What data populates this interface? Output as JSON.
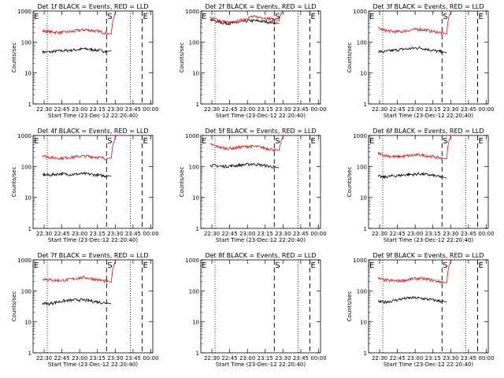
{
  "chart_data": [
    {
      "type": "line",
      "title": "Det 1f BLACK = Events, RED = LLD",
      "xlabel": "Start Time (23-Dec-12 22:20:40)",
      "ylabel": "Counts/sec",
      "yscale": "log",
      "ylim": [
        1,
        1000
      ],
      "xticks": [
        "22:30",
        "22:45",
        "23:00",
        "23:15",
        "23:30",
        "23:45",
        "00:00"
      ],
      "yticks": [
        "1",
        "10",
        "100",
        "1000"
      ],
      "markers": [
        "S",
        "E"
      ],
      "has_data": true,
      "series": [
        {
          "color": "#000000",
          "x": [
            0,
            5,
            10,
            15,
            20,
            25,
            30,
            35,
            40,
            45,
            50,
            55,
            58
          ],
          "y": [
            48,
            47,
            50,
            52,
            53,
            55,
            57,
            60,
            58,
            55,
            52,
            50,
            52
          ]
        },
        {
          "color": "#ff0000",
          "x": [
            0,
            5,
            10,
            15,
            20,
            25,
            30,
            35,
            40,
            45,
            50,
            55,
            58,
            60,
            62
          ],
          "y": [
            230,
            215,
            210,
            205,
            210,
            220,
            235,
            250,
            240,
            225,
            210,
            190,
            180,
            600,
            1000
          ]
        }
      ]
    },
    {
      "type": "line",
      "title": "Det 2f BLACK = Events, RED = LLD",
      "xlabel": "Start Time (23-Dec-12 22:20:40)",
      "ylabel": "Counts/sec",
      "yscale": "log",
      "ylim": [
        1,
        1000
      ],
      "xticks": [
        "22:30",
        "22:45",
        "23:00",
        "23:15",
        "23:30",
        "23:45",
        "00:00"
      ],
      "yticks": [
        "1",
        "10",
        "100",
        "1000"
      ],
      "markers": [
        "S",
        "E"
      ],
      "has_data": true,
      "series": [
        {
          "color": "#000000",
          "x": [
            0,
            5,
            10,
            15,
            20,
            25,
            30,
            35,
            40,
            45,
            50,
            55,
            58
          ],
          "y": [
            520,
            470,
            420,
            400,
            410,
            440,
            470,
            490,
            480,
            460,
            440,
            420,
            400
          ]
        },
        {
          "color": "#ff0000",
          "x": [
            0,
            5,
            10,
            15,
            20,
            25,
            30,
            35,
            40,
            45,
            50,
            55,
            58,
            60,
            62
          ],
          "y": [
            600,
            540,
            470,
            420,
            430,
            500,
            580,
            650,
            640,
            610,
            570,
            520,
            480,
            900,
            1000
          ]
        }
      ]
    },
    {
      "type": "line",
      "title": "Det 3f BLACK = Events, RED = LLD",
      "xlabel": "Start Time (23-Dec-12 22:20:40)",
      "ylabel": "Counts/sec",
      "yscale": "log",
      "ylim": [
        1,
        1000
      ],
      "xticks": [
        "22:30",
        "22:45",
        "23:00",
        "23:15",
        "23:30",
        "23:45",
        "00:00"
      ],
      "yticks": [
        "1",
        "10",
        "100",
        "1000"
      ],
      "markers": [
        "S",
        "E"
      ],
      "has_data": true,
      "series": [
        {
          "color": "#000000",
          "x": [
            0,
            5,
            10,
            15,
            20,
            25,
            30,
            35,
            40,
            45,
            50,
            55,
            58
          ],
          "y": [
            50,
            48,
            52,
            55,
            58,
            60,
            63,
            65,
            60,
            55,
            50,
            48,
            45
          ]
        },
        {
          "color": "#ff0000",
          "x": [
            0,
            5,
            10,
            15,
            20,
            25,
            30,
            35,
            40,
            45,
            50,
            55,
            58,
            60,
            62
          ],
          "y": [
            280,
            240,
            225,
            215,
            220,
            235,
            250,
            260,
            245,
            225,
            210,
            190,
            180,
            700,
            1000
          ]
        }
      ]
    },
    {
      "type": "line",
      "title": "Det 4f BLACK = Events, RED = LLD",
      "xlabel": "Start Time (23-Dec-12 22:20:40)",
      "ylabel": "Counts/sec",
      "yscale": "log",
      "ylim": [
        1,
        1000
      ],
      "xticks": [
        "22:30",
        "22:45",
        "23:00",
        "23:15",
        "23:30",
        "23:45",
        "00:00"
      ],
      "yticks": [
        "1",
        "10",
        "100",
        "1000"
      ],
      "markers": [
        "S",
        "E"
      ],
      "has_data": true,
      "series": [
        {
          "color": "#000000",
          "x": [
            0,
            5,
            10,
            15,
            20,
            25,
            30,
            35,
            40,
            45,
            50,
            55,
            58
          ],
          "y": [
            55,
            52,
            55,
            58,
            56,
            55,
            57,
            58,
            56,
            53,
            50,
            50,
            48
          ]
        },
        {
          "color": "#ff0000",
          "x": [
            0,
            5,
            10,
            15,
            20,
            25,
            30,
            35,
            40,
            45,
            50,
            55,
            58,
            60,
            62
          ],
          "y": [
            230,
            200,
            190,
            185,
            190,
            200,
            210,
            215,
            210,
            200,
            190,
            180,
            190,
            600,
            1000
          ]
        }
      ]
    },
    {
      "type": "line",
      "title": "Det 5f BLACK = Events, RED = LLD",
      "xlabel": "Start Time (23-Dec-12 22:20:40)",
      "ylabel": "Counts/sec",
      "yscale": "log",
      "ylim": [
        1,
        1000
      ],
      "xticks": [
        "22:30",
        "22:45",
        "23:00",
        "23:15",
        "23:30",
        "23:45",
        "00:00"
      ],
      "yticks": [
        "1",
        "10",
        "100",
        "1000"
      ],
      "markers": [
        "S",
        "E"
      ],
      "has_data": true,
      "series": [
        {
          "color": "#000000",
          "x": [
            0,
            5,
            10,
            15,
            20,
            25,
            30,
            35,
            40,
            45,
            50,
            55,
            58
          ],
          "y": [
            110,
            105,
            100,
            102,
            105,
            110,
            115,
            120,
            115,
            108,
            100,
            95,
            90
          ]
        },
        {
          "color": "#ff0000",
          "x": [
            0,
            5,
            10,
            15,
            20,
            25,
            30,
            35,
            40,
            45,
            50,
            55,
            58,
            60,
            62
          ],
          "y": [
            520,
            450,
            400,
            380,
            390,
            420,
            440,
            450,
            430,
            400,
            370,
            340,
            330,
            700,
            1000
          ]
        }
      ]
    },
    {
      "type": "line",
      "title": "Det 6f BLACK = Events, RED = LLD",
      "xlabel": "Start Time (23-Dec-12 22:20:40)",
      "ylabel": "Counts/sec",
      "yscale": "log",
      "ylim": [
        1,
        1000
      ],
      "xticks": [
        "22:30",
        "22:45",
        "23:00",
        "23:15",
        "23:30",
        "23:45",
        "00:00"
      ],
      "yticks": [
        "1",
        "10",
        "100",
        "1000"
      ],
      "markers": [
        "S",
        "E"
      ],
      "has_data": true,
      "series": [
        {
          "color": "#000000",
          "x": [
            0,
            5,
            10,
            15,
            20,
            25,
            30,
            35,
            40,
            45,
            50,
            55,
            58
          ],
          "y": [
            48,
            45,
            48,
            50,
            52,
            55,
            55,
            58,
            55,
            52,
            48,
            45,
            42
          ]
        },
        {
          "color": "#ff0000",
          "x": [
            0,
            5,
            10,
            15,
            20,
            25,
            30,
            35,
            40,
            45,
            50,
            55,
            58,
            60,
            62
          ],
          "y": [
            270,
            230,
            215,
            205,
            210,
            220,
            230,
            240,
            225,
            210,
            195,
            180,
            175,
            700,
            1000
          ]
        }
      ]
    },
    {
      "type": "line",
      "title": "Det 7f BLACK = Events, RED = LLD",
      "xlabel": "Start Time (23-Dec-12 22:20:40)",
      "ylabel": "Counts/sec",
      "yscale": "log",
      "ylim": [
        1,
        1000
      ],
      "xticks": [
        "22:30",
        "22:45",
        "23:00",
        "23:15",
        "23:30",
        "23:45",
        "00:00"
      ],
      "yticks": [
        "1",
        "10",
        "100",
        "1000"
      ],
      "markers": [
        "S",
        "E"
      ],
      "has_data": true,
      "series": [
        {
          "color": "#000000",
          "x": [
            0,
            5,
            10,
            15,
            20,
            25,
            30,
            35,
            40,
            45,
            50,
            55,
            58
          ],
          "y": [
            40,
            38,
            42,
            45,
            48,
            50,
            52,
            50,
            48,
            45,
            42,
            40,
            38
          ]
        },
        {
          "color": "#ff0000",
          "x": [
            0,
            5,
            10,
            15,
            20,
            25,
            30,
            35,
            40,
            45,
            50,
            55,
            58,
            60,
            62
          ],
          "y": [
            250,
            230,
            220,
            215,
            225,
            240,
            260,
            270,
            255,
            235,
            215,
            200,
            190,
            650,
            1000
          ]
        }
      ]
    },
    {
      "type": "line",
      "title": "Det 8f BLACK = Events, RED = LLD",
      "xlabel": "Start Time (23-Dec-12 22:20:40)",
      "ylabel": "",
      "yscale": "log",
      "ylim": [
        1,
        1000
      ],
      "xticks": [
        "22:30",
        "22:45",
        "23:00",
        "23:15",
        "23:30",
        "23:45",
        "00:00"
      ],
      "yticks": [
        "1",
        "10",
        "100",
        "1000"
      ],
      "markers": [
        "S",
        "E"
      ],
      "has_data": false,
      "series": []
    },
    {
      "type": "line",
      "title": "Det 9f BLACK = Events, RED = LLD",
      "xlabel": "Start Time (23-Dec-12 22:20:40)",
      "ylabel": "Counts/sec",
      "yscale": "log",
      "ylim": [
        1,
        1000
      ],
      "xticks": [
        "22:30",
        "22:45",
        "23:00",
        "23:15",
        "23:30",
        "23:45",
        "00:00"
      ],
      "yticks": [
        "1",
        "10",
        "100",
        "1000"
      ],
      "markers": [
        "S",
        "E"
      ],
      "has_data": true,
      "series": [
        {
          "color": "#000000",
          "x": [
            0,
            5,
            10,
            15,
            20,
            25,
            30,
            35,
            40,
            45,
            50,
            55,
            58
          ],
          "y": [
            45,
            43,
            46,
            50,
            55,
            58,
            60,
            58,
            55,
            52,
            48,
            46,
            44
          ]
        },
        {
          "color": "#ff0000",
          "x": [
            0,
            5,
            10,
            15,
            20,
            25,
            30,
            35,
            40,
            45,
            50,
            55,
            58,
            60,
            62
          ],
          "y": [
            250,
            225,
            215,
            210,
            215,
            230,
            245,
            255,
            240,
            225,
            205,
            190,
            180,
            650,
            1000
          ]
        }
      ]
    }
  ]
}
